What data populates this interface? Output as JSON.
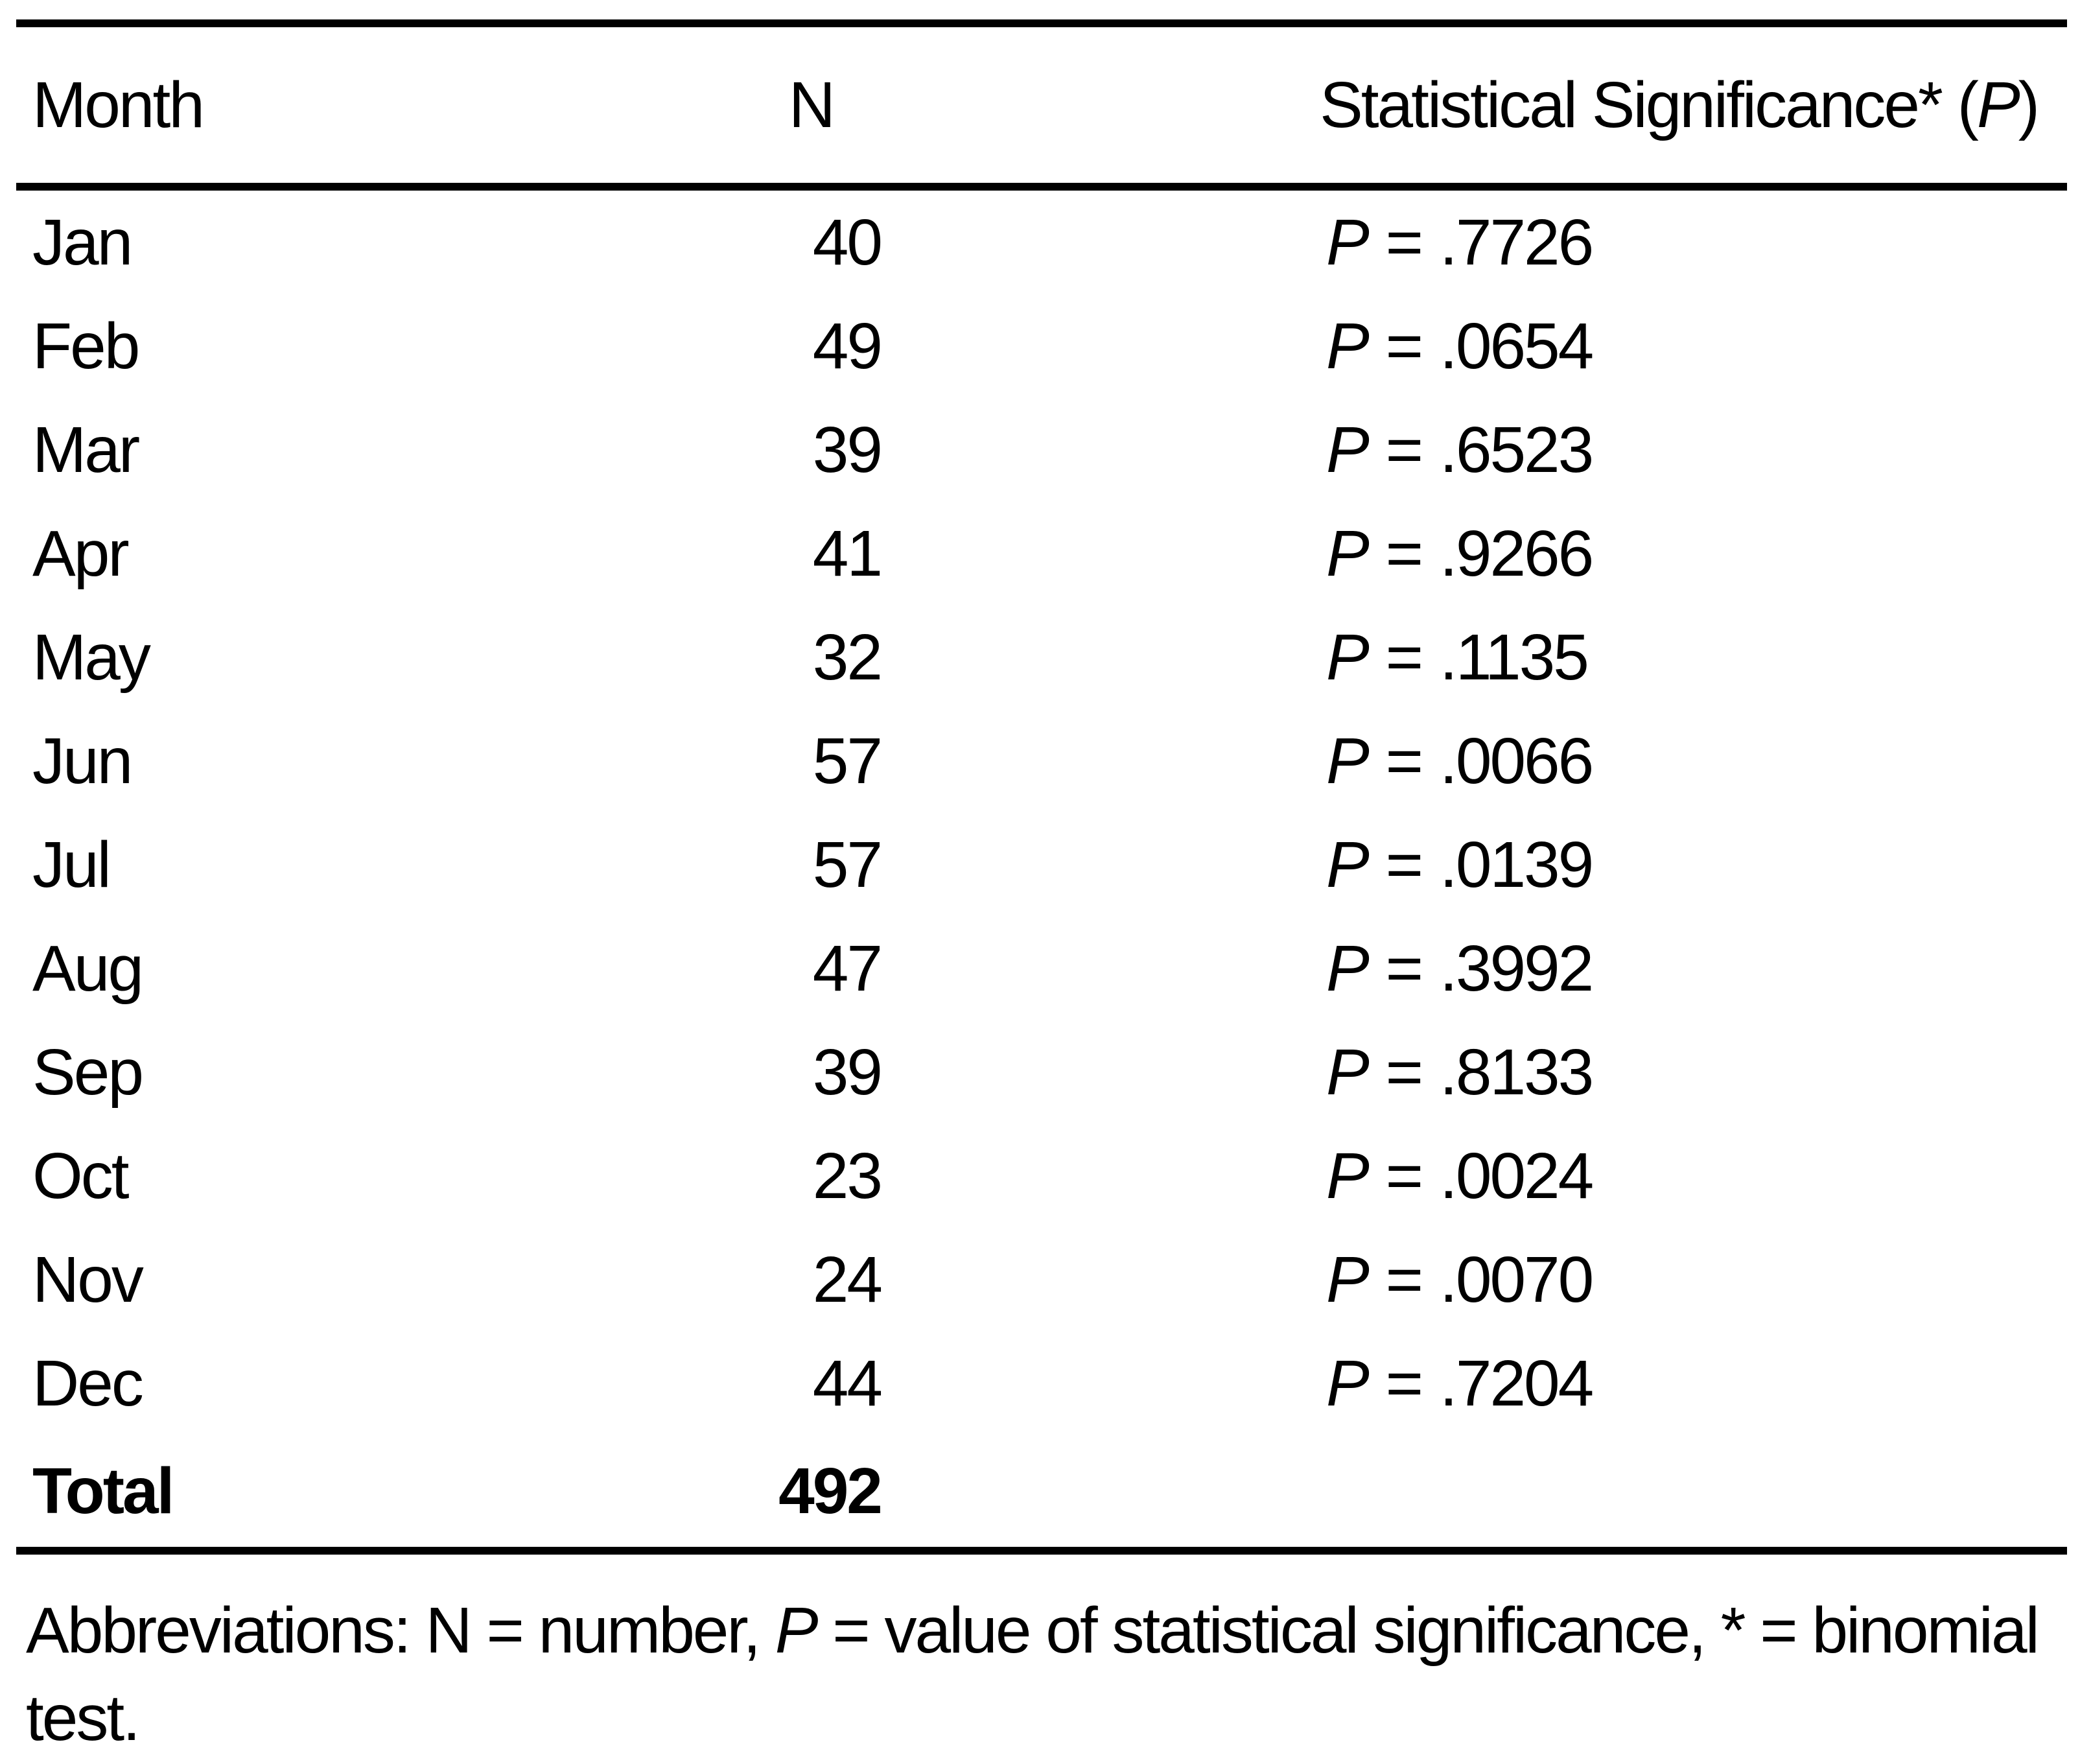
{
  "table": {
    "header": {
      "month": "Month",
      "n": "N",
      "sig_prefix": "Statistical Significance* (",
      "sig_p": "P",
      "sig_suffix": ")"
    },
    "p_symbol": "P",
    "eq_sign": "=",
    "rows": [
      {
        "month": "Jan",
        "n": "40",
        "p_value": ".7726"
      },
      {
        "month": "Feb",
        "n": "49",
        "p_value": ".0654"
      },
      {
        "month": "Mar",
        "n": "39",
        "p_value": ".6523"
      },
      {
        "month": "Apr",
        "n": "41",
        "p_value": ".9266"
      },
      {
        "month": "May",
        "n": "32",
        "p_value": ".1135"
      },
      {
        "month": "Jun",
        "n": "57",
        "p_value": ".0066"
      },
      {
        "month": "Jul",
        "n": "57",
        "p_value": ".0139"
      },
      {
        "month": "Aug",
        "n": "47",
        "p_value": ".3992"
      },
      {
        "month": "Sep",
        "n": "39",
        "p_value": ".8133"
      },
      {
        "month": "Oct",
        "n": "23",
        "p_value": ".0024"
      },
      {
        "month": "Nov",
        "n": "24",
        "p_value": ".0070"
      },
      {
        "month": "Dec",
        "n": "44",
        "p_value": ".7204"
      }
    ],
    "total": {
      "label": "Total",
      "n": "492"
    }
  },
  "footnote": {
    "prefix": "Abbreviations: N = number, ",
    "p": "P",
    "suffix": " = value of statistical significance, * = binomial test."
  }
}
